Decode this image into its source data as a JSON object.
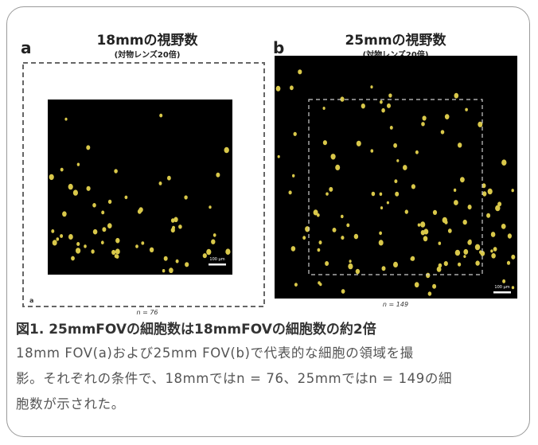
{
  "panels": [
    {
      "label": "a",
      "title": "18mmの視野数",
      "subtitle": "(対物レンズ20倍)",
      "corner_label": "a",
      "scale_bar": "100 µm",
      "count": "n = 76"
    },
    {
      "label": "b",
      "title": "25mmの視野数",
      "subtitle": "(対物レンズ20倍)",
      "scale_bar": "100 µm",
      "count": "n = 149"
    }
  ],
  "caption": {
    "title": "図1. 25mmFOVの細胞数は18mmFOVの細胞数の約2倍",
    "lines": [
      "18mm FOV(a)および25mm FOV(b)で代表的な細胞の領域を撮",
      "影。それぞれの条件で、18mmではn = 76、25mmではn = 149の細",
      "胞数が示された。"
    ]
  }
}
